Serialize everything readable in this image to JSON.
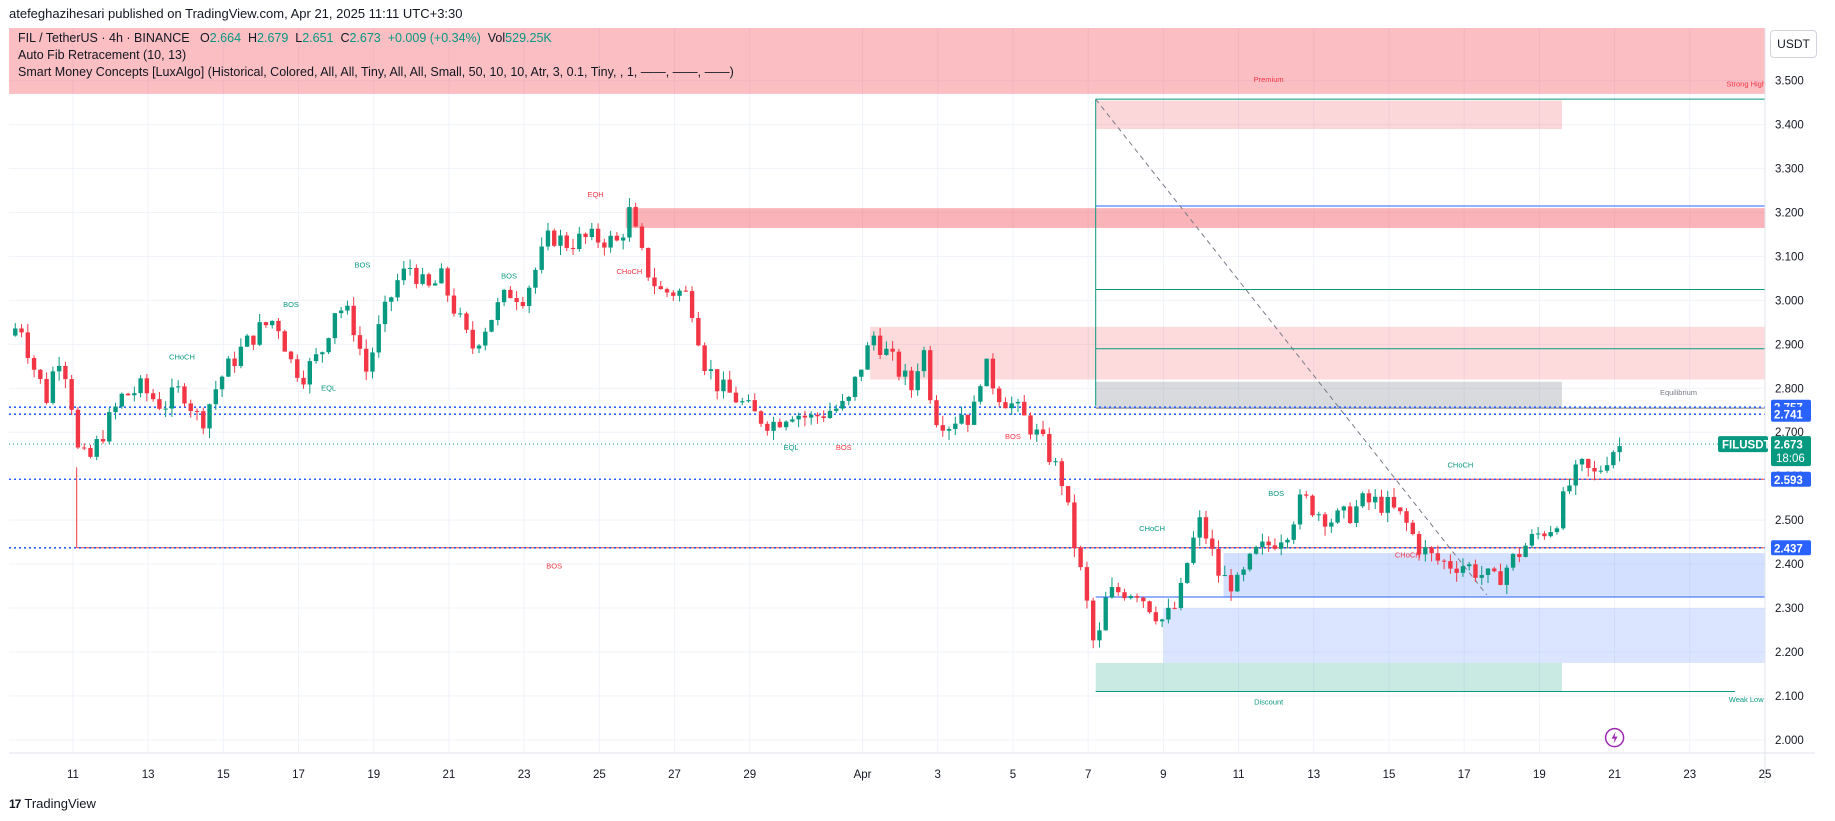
{
  "header": {
    "published": "atefeghazihesari published on TradingView.com, Apr 21, 2025 11:11 UTC+3:30"
  },
  "legend": {
    "symbol": "FIL / TetherUS · 4h · BINANCE",
    "o_label": "O",
    "o_value": "2.664",
    "h_label": "H",
    "h_value": "2.679",
    "l_label": "L",
    "l_value": "2.651",
    "c_label": "C",
    "c_value": "2.673",
    "change": "+0.009 (+0.34%)",
    "vol_label": "Vol",
    "vol_value": "529.25K",
    "indicator1": "Auto Fib Retracement (10, 13)",
    "indicator2": "Smart Money Concepts [LuxAlgo] (Historical, Colored, All, All, Tiny, All, All, Small, 50, 10, 10, Atr, 3, 0.1, Tiny, , 1, ——, ——, ——)"
  },
  "axis_currency": "USDT",
  "footer": {
    "brand": "TradingView",
    "logo": "17"
  },
  "colors": {
    "up": "#089981",
    "down": "#f23645",
    "blue": "#2962ff",
    "bg": "#ffffff"
  },
  "chart_data": {
    "type": "candlestick",
    "title": "FIL / TetherUS · 4h · BINANCE",
    "ylim": [
      1.97,
      3.62
    ],
    "y_ticks": [
      "3.500",
      "3.400",
      "3.300",
      "3.200",
      "3.100",
      "3.000",
      "2.900",
      "2.800",
      "2.700",
      "2.600",
      "2.500",
      "2.400",
      "2.300",
      "2.200",
      "2.100",
      "2.000"
    ],
    "x_ticks": [
      {
        "label": "11",
        "day": 11
      },
      {
        "label": "13",
        "day": 13
      },
      {
        "label": "15",
        "day": 15
      },
      {
        "label": "17",
        "day": 17
      },
      {
        "label": "19",
        "day": 19
      },
      {
        "label": "21",
        "day": 21
      },
      {
        "label": "23",
        "day": 23
      },
      {
        "label": "25",
        "day": 25
      },
      {
        "label": "27",
        "day": 27
      },
      {
        "label": "29",
        "day": 29
      },
      {
        "label": "Apr",
        "day": 32
      },
      {
        "label": "3",
        "day": 34
      },
      {
        "label": "5",
        "day": 36
      },
      {
        "label": "7",
        "day": 38
      },
      {
        "label": "9",
        "day": 40
      },
      {
        "label": "11",
        "day": 42
      },
      {
        "label": "13",
        "day": 44
      },
      {
        "label": "15",
        "day": 46
      },
      {
        "label": "17",
        "day": 48
      },
      {
        "label": "19",
        "day": 50
      },
      {
        "label": "21",
        "day": 52
      },
      {
        "label": "23",
        "day": 54
      },
      {
        "label": "25",
        "day": 56
      }
    ],
    "x_range_days": [
      9.3,
      56.0
    ],
    "price_path": [
      [
        9.3,
        2.92
      ],
      [
        9.6,
        2.95
      ],
      [
        9.9,
        2.86
      ],
      [
        10.3,
        2.78
      ],
      [
        10.6,
        2.88
      ],
      [
        10.9,
        2.82
      ],
      [
        11.1,
        2.66
      ],
      [
        11.4,
        2.63
      ],
      [
        11.8,
        2.7
      ],
      [
        12.3,
        2.78
      ],
      [
        12.8,
        2.8
      ],
      [
        13.4,
        2.76
      ],
      [
        13.9,
        2.8
      ],
      [
        14.4,
        2.72
      ],
      [
        14.9,
        2.82
      ],
      [
        15.4,
        2.88
      ],
      [
        15.9,
        2.93
      ],
      [
        16.4,
        2.96
      ],
      [
        16.8,
        2.86
      ],
      [
        17.1,
        2.83
      ],
      [
        17.6,
        2.88
      ],
      [
        18.0,
        2.99
      ],
      [
        18.4,
        2.96
      ],
      [
        18.8,
        2.84
      ],
      [
        19.2,
        2.95
      ],
      [
        19.6,
        3.04
      ],
      [
        20.0,
        3.08
      ],
      [
        20.4,
        3.02
      ],
      [
        20.8,
        3.05
      ],
      [
        21.3,
        2.95
      ],
      [
        21.6,
        2.89
      ],
      [
        22.1,
        2.96
      ],
      [
        22.6,
        3.02
      ],
      [
        23.0,
        3.01
      ],
      [
        23.3,
        3.07
      ],
      [
        23.7,
        3.15
      ],
      [
        24.1,
        3.13
      ],
      [
        24.6,
        3.14
      ],
      [
        25.1,
        3.14
      ],
      [
        25.5,
        3.13
      ],
      [
        25.8,
        3.2
      ],
      [
        26.2,
        3.08
      ],
      [
        26.6,
        3.02
      ],
      [
        27.1,
        3.02
      ],
      [
        27.4,
        3.01
      ],
      [
        27.8,
        2.86
      ],
      [
        28.2,
        2.8
      ],
      [
        28.6,
        2.78
      ],
      [
        29.1,
        2.74
      ],
      [
        29.6,
        2.72
      ],
      [
        30.1,
        2.75
      ],
      [
        30.6,
        2.73
      ],
      [
        31.1,
        2.75
      ],
      [
        31.6,
        2.76
      ],
      [
        31.9,
        2.84
      ],
      [
        32.3,
        2.92
      ],
      [
        32.8,
        2.86
      ],
      [
        33.3,
        2.8
      ],
      [
        33.6,
        2.9
      ],
      [
        33.9,
        2.74
      ],
      [
        34.3,
        2.72
      ],
      [
        34.7,
        2.75
      ],
      [
        34.9,
        2.72
      ],
      [
        35.2,
        2.86
      ],
      [
        35.6,
        2.79
      ],
      [
        36.0,
        2.76
      ],
      [
        36.5,
        2.71
      ],
      [
        36.9,
        2.66
      ],
      [
        37.3,
        2.59
      ],
      [
        37.6,
        2.46
      ],
      [
        37.9,
        2.34
      ],
      [
        38.2,
        2.19
      ],
      [
        38.5,
        2.33
      ],
      [
        38.9,
        2.34
      ],
      [
        39.3,
        2.34
      ],
      [
        39.7,
        2.3
      ],
      [
        40.0,
        2.27
      ],
      [
        40.4,
        2.31
      ],
      [
        40.7,
        2.43
      ],
      [
        41.0,
        2.5
      ],
      [
        41.5,
        2.37
      ],
      [
        42.0,
        2.35
      ],
      [
        42.4,
        2.42
      ],
      [
        42.9,
        2.45
      ],
      [
        43.3,
        2.48
      ],
      [
        43.7,
        2.55
      ],
      [
        44.1,
        2.52
      ],
      [
        44.5,
        2.5
      ],
      [
        44.9,
        2.51
      ],
      [
        45.3,
        2.54
      ],
      [
        45.7,
        2.54
      ],
      [
        46.0,
        2.53
      ],
      [
        46.4,
        2.5
      ],
      [
        46.8,
        2.44
      ],
      [
        47.2,
        2.41
      ],
      [
        47.6,
        2.4
      ],
      [
        48.0,
        2.4
      ],
      [
        48.4,
        2.38
      ],
      [
        48.8,
        2.36
      ],
      [
        49.2,
        2.4
      ],
      [
        49.6,
        2.44
      ],
      [
        50.0,
        2.47
      ],
      [
        50.4,
        2.49
      ],
      [
        50.8,
        2.58
      ],
      [
        51.1,
        2.62
      ],
      [
        51.5,
        2.6
      ],
      [
        51.9,
        2.66
      ],
      [
        52.2,
        2.67
      ]
    ],
    "last_price": "2.673",
    "countdown": "18:06",
    "ticker": "FILUSDT",
    "price_labels": [
      {
        "value": 2.757,
        "label": "2.757",
        "color": "#2962ff"
      },
      {
        "value": 2.741,
        "label": "2.741",
        "color": "#2962ff"
      },
      {
        "value": 2.593,
        "label": "2.593",
        "color": "#2962ff"
      },
      {
        "value": 2.437,
        "label": "2.437",
        "color": "#2962ff"
      }
    ],
    "zones": [
      {
        "name": "premium-band",
        "x1": 9.3,
        "x2": 56.0,
        "y1": 3.62,
        "y2": 3.47,
        "fill": "#f23645",
        "opacity": 0.32
      },
      {
        "name": "supply-zone-top",
        "x1": 38.2,
        "x2": 50.6,
        "y1": 3.455,
        "y2": 3.39,
        "fill": "#f23645",
        "opacity": 0.2
      },
      {
        "name": "supply-zone-mid",
        "x1": 25.7,
        "x2": 56.0,
        "y1": 3.21,
        "y2": 3.165,
        "fill": "#f23645",
        "opacity": 0.38
      },
      {
        "name": "supply-zone-large",
        "x1": 32.2,
        "x2": 56.0,
        "y1": 2.94,
        "y2": 2.82,
        "fill": "#f23645",
        "opacity": 0.18
      },
      {
        "name": "equilibrium-zone",
        "x1": 38.2,
        "x2": 50.6,
        "y1": 2.815,
        "y2": 2.755,
        "fill": "#787b86",
        "opacity": 0.28
      },
      {
        "name": "demand-zone-a",
        "x1": 41.6,
        "x2": 56.0,
        "y1": 2.425,
        "y2": 2.325,
        "fill": "#2962ff",
        "opacity": 0.2
      },
      {
        "name": "demand-zone-b",
        "x1": 40.0,
        "x2": 56.0,
        "y1": 2.3,
        "y2": 2.175,
        "fill": "#2962ff",
        "opacity": 0.17
      },
      {
        "name": "discount-zone",
        "x1": 38.2,
        "x2": 50.6,
        "y1": 2.175,
        "y2": 2.11,
        "fill": "#089981",
        "opacity": 0.22
      }
    ],
    "annotations": [
      {
        "text": "Premium",
        "day": 42.8,
        "price": 3.497,
        "color": "#f23645"
      },
      {
        "text": "Strong High",
        "day": 55.5,
        "price": 3.487,
        "color": "#f23645"
      },
      {
        "text": "Equilibrium",
        "day": 53.7,
        "price": 2.785,
        "color": "#787b86"
      },
      {
        "text": "Discount",
        "day": 42.8,
        "price": 2.08,
        "color": "#089981"
      },
      {
        "text": "Weak Low",
        "day": 55.5,
        "price": 2.086,
        "color": "#089981"
      },
      {
        "text": "BOS",
        "day": 23.8,
        "price": 2.39,
        "color": "#f23645"
      },
      {
        "text": "CHoCH",
        "day": 13.9,
        "price": 2.865,
        "color": "#089981"
      },
      {
        "text": "BOS",
        "day": 16.8,
        "price": 2.985,
        "color": "#089981"
      },
      {
        "text": "BOS",
        "day": 18.7,
        "price": 3.075,
        "color": "#089981"
      },
      {
        "text": "BOS",
        "day": 22.6,
        "price": 3.05,
        "color": "#089981"
      },
      {
        "text": "EQH",
        "day": 24.9,
        "price": 3.235,
        "color": "#f23645"
      },
      {
        "text": "CHoCH",
        "day": 25.8,
        "price": 3.06,
        "color": "#f23645"
      },
      {
        "text": "EQL",
        "day": 17.8,
        "price": 2.795,
        "color": "#089981"
      },
      {
        "text": "EQL",
        "day": 30.1,
        "price": 2.66,
        "color": "#089981"
      },
      {
        "text": "BOS",
        "day": 31.5,
        "price": 2.66,
        "color": "#f23645"
      },
      {
        "text": "BOS",
        "day": 36.0,
        "price": 2.685,
        "color": "#f23645"
      },
      {
        "text": "CHoCH",
        "day": 39.7,
        "price": 2.475,
        "color": "#089981"
      },
      {
        "text": "BOS",
        "day": 43.0,
        "price": 2.555,
        "color": "#089981"
      },
      {
        "text": "CHoCH",
        "day": 46.5,
        "price": 2.415,
        "color": "#f23645"
      },
      {
        "text": "CHoCH",
        "day": 47.9,
        "price": 2.62,
        "color": "#089981"
      }
    ]
  }
}
